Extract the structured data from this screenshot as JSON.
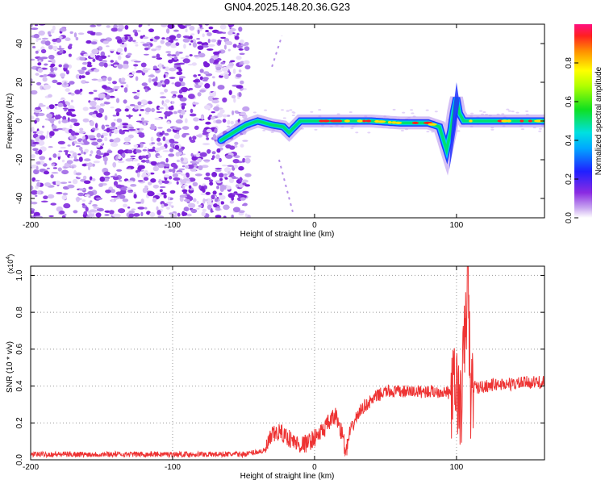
{
  "title": "GN04.2025.148.20.36.G23",
  "charts": {
    "spectrogram": {
      "type": "heatmap",
      "xlabel": "Height of straight line (km)",
      "ylabel": "Frequency (Hz)",
      "xlim": [
        -200,
        162
      ],
      "ylim": [
        -50,
        50
      ],
      "xticks": [
        -200,
        -100,
        0,
        100
      ],
      "xtick_labels": [
        "-200",
        "-100",
        "0",
        "100"
      ],
      "yticks": [
        -40,
        -20,
        0,
        20,
        40
      ],
      "ytick_labels": [
        "-40",
        "-20",
        "0",
        "20",
        "40"
      ],
      "colorbar": {
        "label": "Normalized spectral amplitude",
        "range": [
          0,
          1
        ],
        "ticks": [
          0.0,
          0.2,
          0.4,
          0.6,
          0.8
        ],
        "tick_labels": [
          "0.0",
          "0.2",
          "0.4",
          "0.6",
          "0.8"
        ]
      },
      "colors": {
        "noise": "#8a2be2",
        "ridge_low": "#1e3cff",
        "ridge_mid": "#00e070",
        "ridge_high": "#ff2020"
      }
    },
    "snr": {
      "type": "line",
      "xlabel": "Height of straight line (km)",
      "ylabel": "SNR (10 * v/v)",
      "scale_label": "(x10",
      "scale_exp": "4",
      "scale_close": ")",
      "xlim": [
        -200,
        162
      ],
      "ylim": [
        0,
        1.05
      ],
      "xticks": [
        -200,
        -100,
        0,
        100
      ],
      "xtick_labels": [
        "-200",
        "-100",
        "0",
        "100"
      ],
      "yticks": [
        0.0,
        0.2,
        0.4,
        0.6,
        0.8,
        1.0
      ],
      "ytick_labels": [
        "0.0",
        "0.2",
        "0.4",
        "0.6",
        "0.8",
        "1.0"
      ],
      "color": "#ee3333"
    }
  },
  "chart_data": [
    {
      "type": "heatmap",
      "title": "GN04.2025.148.20.36.G23",
      "xlabel": "Height of straight line (km)",
      "ylabel": "Frequency (Hz)",
      "xlim": [
        -200,
        162
      ],
      "ylim": [
        -50,
        50
      ],
      "ridge_x": [
        -66,
        -55,
        -48,
        -40,
        -30,
        -22,
        -18,
        -10,
        0,
        20,
        40,
        60,
        80,
        88,
        93,
        96,
        98,
        100,
        102,
        105,
        110,
        130,
        150,
        162
      ],
      "ridge_y": [
        -10,
        -5,
        -2,
        0,
        -2,
        -3,
        -6,
        0,
        0,
        0,
        0,
        -1,
        -1,
        -3,
        -15,
        -5,
        5,
        12,
        4,
        0,
        0,
        0,
        0,
        0
      ],
      "noise_region_x": [
        -200,
        -50
      ]
    },
    {
      "type": "line",
      "xlabel": "Height of straight line (km)",
      "ylabel": "SNR (10 * v/v)",
      "xlim": [
        -200,
        162
      ],
      "ylim": [
        0,
        1.05
      ],
      "x": [
        -200,
        -150,
        -100,
        -50,
        -35,
        -30,
        -25,
        -20,
        -15,
        -10,
        -5,
        0,
        5,
        10,
        15,
        20,
        22,
        25,
        30,
        35,
        40,
        45,
        50,
        60,
        70,
        80,
        90,
        95,
        98,
        100,
        103,
        105,
        107,
        108,
        110,
        112,
        115,
        120,
        130,
        140,
        150,
        162
      ],
      "y": [
        0.03,
        0.03,
        0.03,
        0.03,
        0.05,
        0.13,
        0.15,
        0.13,
        0.1,
        0.08,
        0.09,
        0.12,
        0.15,
        0.2,
        0.24,
        0.13,
        0.03,
        0.15,
        0.24,
        0.29,
        0.32,
        0.35,
        0.37,
        0.37,
        0.37,
        0.37,
        0.37,
        0.36,
        0.37,
        0.4,
        0.25,
        0.55,
        0.8,
        1.05,
        0.3,
        0.4,
        0.39,
        0.4,
        0.41,
        0.41,
        0.42,
        0.42
      ]
    }
  ]
}
